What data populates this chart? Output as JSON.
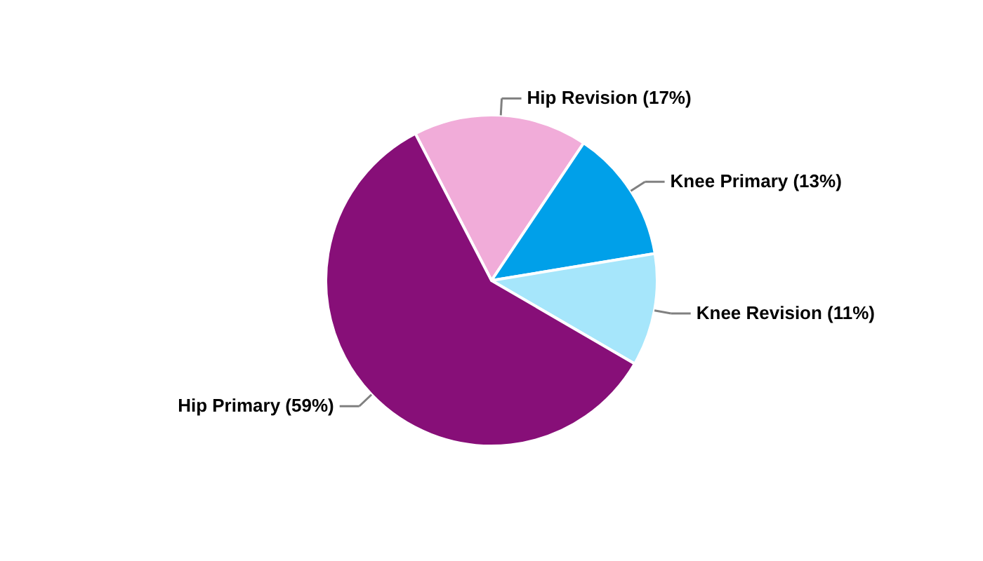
{
  "chart_data": {
    "type": "pie",
    "categories": [
      "Hip Revision",
      "Knee Primary",
      "Knee Revision",
      "Hip Primary"
    ],
    "values": [
      17,
      13,
      11,
      59
    ],
    "colors": [
      "#f1acd9",
      "#00a0e9",
      "#a6e6fb",
      "#870f78"
    ],
    "value_labels": [
      "(17%)",
      "(13%)",
      "(11%)",
      "(59%)"
    ]
  }
}
